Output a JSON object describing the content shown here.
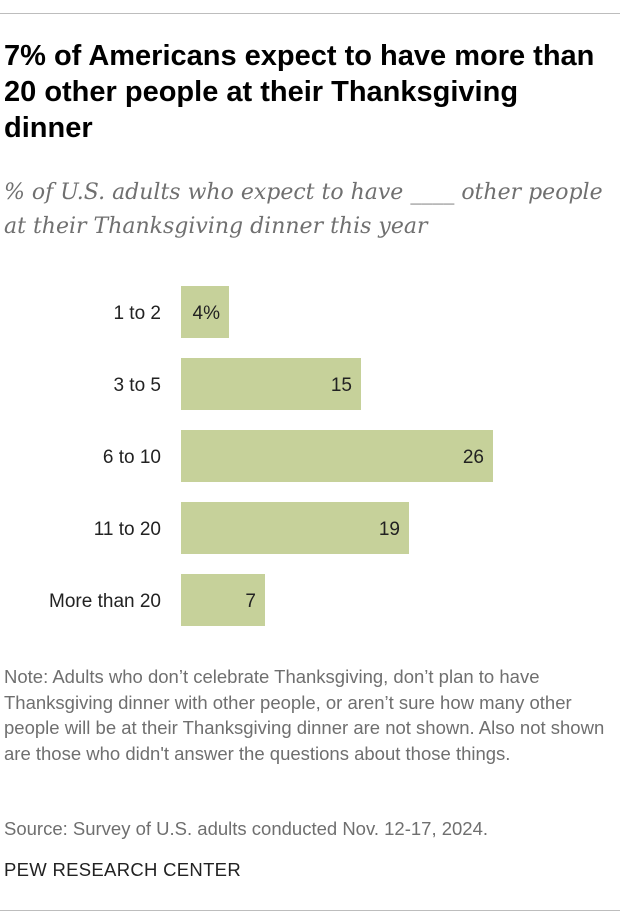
{
  "header": {
    "title": "7% of Americans expect to have more than 20 other people at their Thanksgiving dinner",
    "subtitle": "% of U.S. adults who expect to have ____ other people at their Thanksgiving dinner this year"
  },
  "chart_data": {
    "type": "bar",
    "orientation": "horizontal",
    "categories": [
      "1 to 2",
      "3 to 5",
      "6 to 10",
      "11 to 20",
      "More than 20"
    ],
    "values": [
      4,
      15,
      26,
      19,
      7
    ],
    "value_labels": [
      "4%",
      "15",
      "26",
      "19",
      "7"
    ],
    "bar_color": "#c6d19a",
    "grid": false
  },
  "footnotes": {
    "note": "Note: Adults who don’t celebrate Thanksgiving, don’t plan to have Thanksgiving dinner with other people, or aren’t sure how many other people will be at their Thanksgiving dinner are not shown. Also not shown are those who didn't answer the questions about those things.",
    "source": "Source: Survey of U.S. adults conducted Nov. 12-17, 2024.",
    "org": "PEW RESEARCH CENTER"
  }
}
